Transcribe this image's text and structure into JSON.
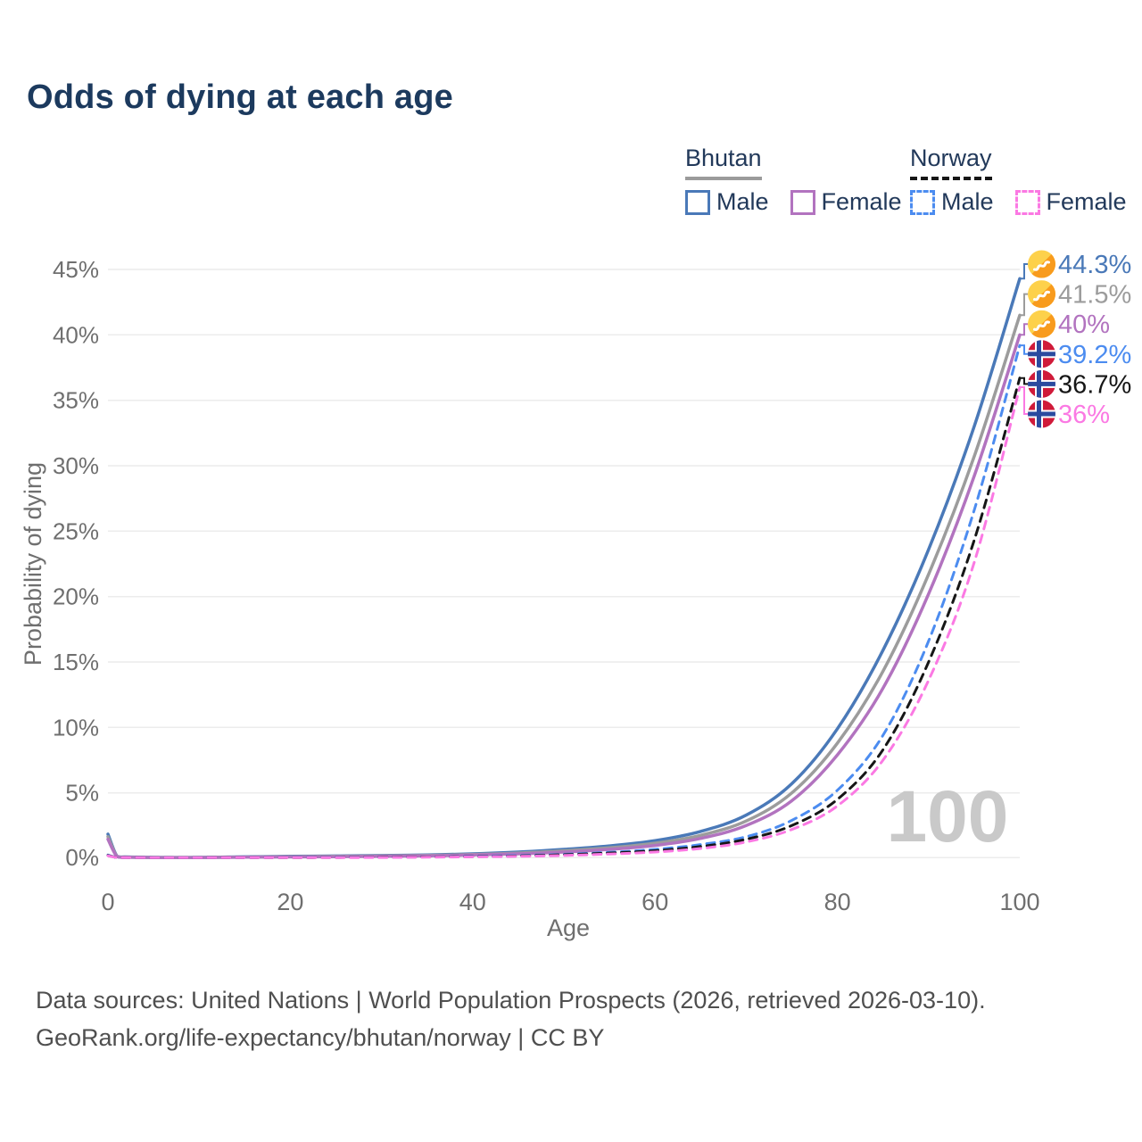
{
  "title": "Odds of dying at each age",
  "legend": {
    "groups": [
      {
        "name": "Bhutan",
        "line_style": "solid",
        "underline_color": "#9b9b9b",
        "items": [
          {
            "label": "Male",
            "color": "#4a79b8",
            "dash": false
          },
          {
            "label": "Female",
            "color": "#b273bf",
            "dash": false
          }
        ]
      },
      {
        "name": "Norway",
        "line_style": "dashed",
        "underline_color": "#161616",
        "items": [
          {
            "label": "Male",
            "color": "#4c8cf0",
            "dash": true
          },
          {
            "label": "Female",
            "color": "#fb79e3",
            "dash": true
          }
        ]
      }
    ]
  },
  "chart_data": {
    "type": "line",
    "title": "Odds of dying at each age",
    "xlabel": "Age",
    "ylabel": "Probability of dying",
    "xlim": [
      0,
      100
    ],
    "ylim": [
      0,
      45
    ],
    "grid": "horizontal",
    "legend_position": "top-right",
    "watermark": "100",
    "xticks": [
      {
        "v": 0,
        "label": "0"
      },
      {
        "v": 20,
        "label": "20"
      },
      {
        "v": 40,
        "label": "40"
      },
      {
        "v": 60,
        "label": "60"
      },
      {
        "v": 80,
        "label": "80"
      },
      {
        "v": 100,
        "label": "100"
      }
    ],
    "yticks": [
      {
        "v": 0,
        "label": "0%"
      },
      {
        "v": 5,
        "label": "5%"
      },
      {
        "v": 10,
        "label": "10%"
      },
      {
        "v": 15,
        "label": "15%"
      },
      {
        "v": 20,
        "label": "20%"
      },
      {
        "v": 25,
        "label": "25%"
      },
      {
        "v": 30,
        "label": "30%"
      },
      {
        "v": 35,
        "label": "35%"
      },
      {
        "v": 40,
        "label": "40%"
      },
      {
        "v": 45,
        "label": "45%"
      }
    ],
    "x_ages": [
      0,
      1,
      2,
      5,
      10,
      15,
      20,
      25,
      30,
      35,
      40,
      45,
      50,
      55,
      60,
      65,
      70,
      75,
      80,
      85,
      90,
      95,
      100
    ],
    "series": [
      {
        "name": "Bhutan Male",
        "country": "Bhutan",
        "sex": "Male",
        "color": "#4a79b8",
        "dash": false,
        "flag": "bhutan",
        "end_label": "44.3%",
        "values": [
          1.85,
          0.16,
          0.1,
          0.07,
          0.07,
          0.11,
          0.15,
          0.18,
          0.21,
          0.26,
          0.34,
          0.48,
          0.68,
          0.95,
          1.35,
          2.05,
          3.3,
          5.7,
          9.9,
          15.9,
          23.6,
          33.0,
          44.3
        ]
      },
      {
        "name": "Bhutan Both sexes",
        "country": "Bhutan",
        "sex": "Both",
        "color": "#9c9c9c",
        "dash": false,
        "flag": "bhutan",
        "end_label": "41.5%",
        "values": [
          1.65,
          0.14,
          0.09,
          0.06,
          0.06,
          0.09,
          0.12,
          0.15,
          0.18,
          0.22,
          0.29,
          0.4,
          0.57,
          0.8,
          1.15,
          1.75,
          2.85,
          5.0,
          8.8,
          14.3,
          21.7,
          30.7,
          41.5
        ]
      },
      {
        "name": "Bhutan Female",
        "country": "Bhutan",
        "sex": "Female",
        "color": "#b273bf",
        "dash": false,
        "flag": "bhutan",
        "end_label": "40%",
        "values": [
          1.45,
          0.12,
          0.08,
          0.05,
          0.05,
          0.08,
          0.1,
          0.12,
          0.15,
          0.19,
          0.25,
          0.34,
          0.48,
          0.68,
          0.98,
          1.52,
          2.5,
          4.4,
          7.9,
          13.0,
          20.2,
          29.2,
          40.0
        ]
      },
      {
        "name": "Norway Male",
        "country": "Norway",
        "sex": "Male",
        "color": "#4c8cf0",
        "dash": true,
        "flag": "norway",
        "end_label": "39.2%",
        "values": [
          0.25,
          0.03,
          0.02,
          0.01,
          0.01,
          0.04,
          0.07,
          0.08,
          0.09,
          0.11,
          0.15,
          0.21,
          0.31,
          0.46,
          0.68,
          1.05,
          1.65,
          2.9,
          5.2,
          9.4,
          16.6,
          26.6,
          39.2
        ]
      },
      {
        "name": "Norway Both sexes",
        "country": "Norway",
        "sex": "Both",
        "color": "#161616",
        "dash": true,
        "flag": "norway",
        "end_label": "36.7%",
        "values": [
          0.22,
          0.03,
          0.02,
          0.01,
          0.01,
          0.03,
          0.05,
          0.06,
          0.08,
          0.1,
          0.13,
          0.18,
          0.27,
          0.4,
          0.58,
          0.9,
          1.45,
          2.5,
          4.5,
          8.3,
          15.0,
          24.3,
          36.7
        ]
      },
      {
        "name": "Norway Female",
        "country": "Norway",
        "sex": "Female",
        "color": "#fb79e3",
        "dash": true,
        "flag": "norway",
        "end_label": "36%",
        "values": [
          0.19,
          0.02,
          0.01,
          0.01,
          0.01,
          0.02,
          0.04,
          0.05,
          0.06,
          0.08,
          0.11,
          0.15,
          0.22,
          0.33,
          0.48,
          0.75,
          1.25,
          2.2,
          4.0,
          7.5,
          13.6,
          22.6,
          36.0
        ]
      }
    ]
  },
  "footer": {
    "line1": "Data sources: United Nations | World Population Prospects (2026, retrieved 2026-03-10).",
    "line2": "GeoRank.org/life-expectancy/bhutan/norway | CC BY"
  }
}
